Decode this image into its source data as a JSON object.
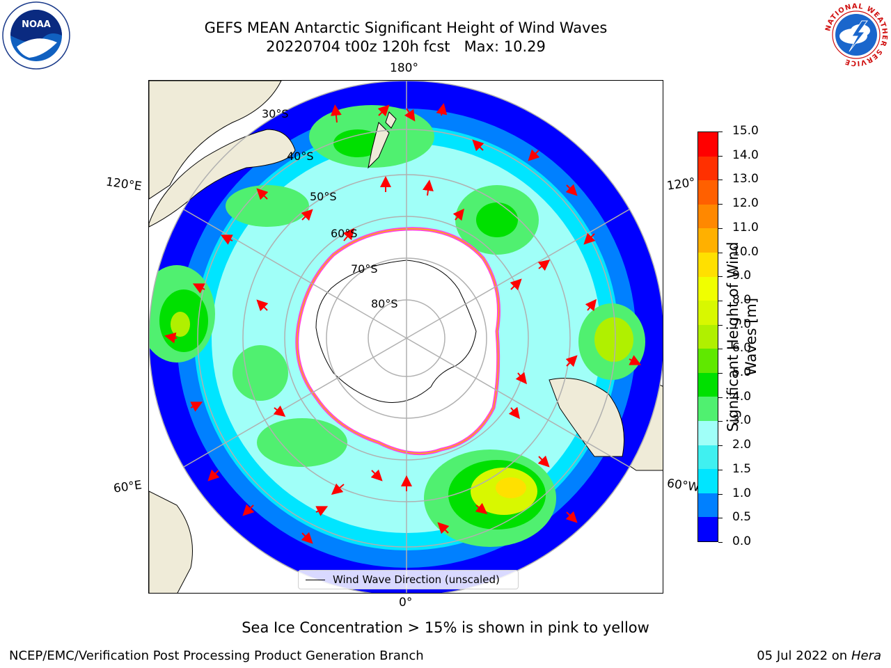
{
  "header": {
    "title_line1": "GEFS MEAN Antarctic Significant Height of Wind Waves",
    "title_line2": "20220704 t00z 120h fcst   Max: 10.29"
  },
  "logos": {
    "left": "NOAA",
    "right_ring_text": "NATIONAL WEATHER SERVICE"
  },
  "map": {
    "longitude_labels": {
      "top": "180°",
      "bottom": "0°",
      "left_upper": "120°E",
      "left_lower": "60°E",
      "right_upper": "120°",
      "right_lower": "60°W"
    },
    "latitude_labels": [
      "30°S",
      "40°S",
      "50°S",
      "60°S",
      "70°S",
      "80°S"
    ],
    "legend_entry": "Wind Wave Direction (unscaled)",
    "colors": {
      "land": "#efebd8",
      "ice": "#ffffff",
      "ice_edge": "#ff44dd",
      "arrow": "#ff0000",
      "graticule": "#b0b0b0"
    }
  },
  "colorbar": {
    "title": "Significant Height of Wind Waves [m]",
    "tick_labels": [
      "0.0",
      "0.5",
      "1.0",
      "1.5",
      "2.0",
      "3.0",
      "4.0",
      "5.0",
      "6.0",
      "7.0",
      "8.0",
      "9.0",
      "10.0",
      "11.0",
      "12.0",
      "13.0",
      "14.0",
      "15.0"
    ],
    "colors": [
      "#0000ff",
      "#0080ff",
      "#00e5ff",
      "#40f0f0",
      "#a0fff8",
      "#50f070",
      "#00e000",
      "#60e800",
      "#b0f000",
      "#d8f800",
      "#f0ff00",
      "#ffe000",
      "#ffb000",
      "#ff8800",
      "#ff6000",
      "#ff3000",
      "#ff0000"
    ]
  },
  "footer": {
    "note": "Sea Ice Concentration > 15% is shown in pink to yellow",
    "producer": "NCEP/EMC/Verification Post Processing Product Generation Branch",
    "date_prefix": "05 Jul 2022 on ",
    "machine": "Hera"
  }
}
